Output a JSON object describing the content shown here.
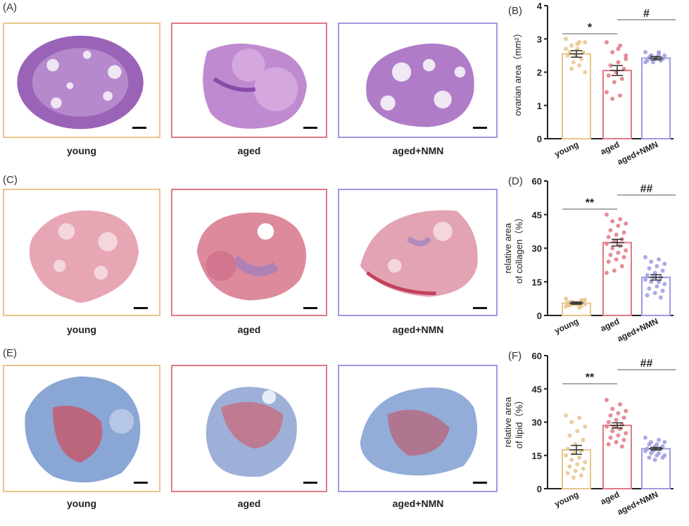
{
  "panels": {
    "A": "(A)",
    "B": "(B)",
    "C": "(C)",
    "D": "(D)",
    "E": "(E)",
    "F": "(F)"
  },
  "groups": [
    "young",
    "aged",
    "aged+NMN"
  ],
  "colors": {
    "young": "#e8c48c",
    "aged": "#e07a82",
    "nmn": "#9e9be0"
  },
  "chart_data": [
    {
      "id": "B",
      "type": "bar",
      "categories": [
        "young",
        "aged",
        "aged+NMN"
      ],
      "values": [
        2.55,
        2.05,
        2.42
      ],
      "sem": [
        0.1,
        0.15,
        0.05
      ],
      "points": [
        [
          3.0,
          2.9,
          2.8,
          2.9,
          2.7,
          2.6,
          2.6,
          2.5,
          2.5,
          2.4,
          2.3,
          2.7,
          2.2,
          2.1,
          2.0,
          2.85
        ],
        [
          2.9,
          2.8,
          2.6,
          2.5,
          2.3,
          2.2,
          2.1,
          2.0,
          1.9,
          1.8,
          1.7,
          1.4,
          1.3,
          1.2,
          2.4,
          2.7
        ],
        [
          2.6,
          2.55,
          2.5,
          2.5,
          2.45,
          2.45,
          2.4,
          2.4,
          2.35,
          2.35,
          2.3,
          2.3,
          2.6,
          2.5
        ]
      ],
      "ylabel": "ovarian area（mm²）",
      "ylim": [
        0,
        4
      ],
      "yticks": [
        "0",
        "1",
        "2",
        "3",
        "4"
      ],
      "sig": [
        {
          "text": "*",
          "from": 0,
          "to": 1
        },
        {
          "text": "#",
          "from": 1,
          "to": 2
        }
      ]
    },
    {
      "id": "D",
      "type": "bar",
      "categories": [
        "young",
        "aged",
        "aged+NMN"
      ],
      "values": [
        5.5,
        32.5,
        17.0
      ],
      "sem": [
        0.5,
        1.5,
        1.2
      ],
      "points": [
        [
          4,
          5,
          6,
          7,
          5,
          4.5,
          6.5,
          5.5,
          6,
          4,
          5,
          7.5,
          3.5,
          6,
          5,
          5.5,
          4.8,
          6.2,
          5.2,
          4.6,
          6.8,
          5.8
        ],
        [
          45,
          43,
          42,
          41,
          40,
          38,
          37,
          36,
          35,
          34,
          33,
          32,
          31,
          30,
          29,
          28,
          27,
          26,
          25,
          24,
          22,
          20,
          19
        ],
        [
          26,
          25,
          24,
          23,
          22,
          21,
          20,
          19,
          18,
          17,
          17,
          16,
          15,
          15,
          14,
          13,
          12,
          11,
          10,
          9,
          8
        ]
      ],
      "ylabel_lines": [
        "relative area",
        "of collagen（%）"
      ],
      "ylim": [
        0,
        60
      ],
      "yticks": [
        "0",
        "15",
        "30",
        "45",
        "60"
      ],
      "sig": [
        {
          "text": "**",
          "from": 0,
          "to": 1
        },
        {
          "text": "##",
          "from": 1,
          "to": 2
        }
      ]
    },
    {
      "id": "F",
      "type": "bar",
      "categories": [
        "young",
        "aged",
        "aged+NMN"
      ],
      "values": [
        17.5,
        28.5,
        18.0
      ],
      "sem": [
        2.0,
        1.2,
        0.6
      ],
      "points": [
        [
          33,
          32,
          30,
          28,
          26,
          24,
          22,
          20,
          18,
          17,
          16,
          15,
          14,
          13,
          12,
          11,
          10,
          9,
          8,
          7,
          6,
          5
        ],
        [
          40,
          38,
          36,
          35,
          34,
          33,
          32,
          31,
          30,
          29,
          28,
          28,
          27,
          26,
          25,
          24,
          23,
          22,
          21,
          20,
          19
        ],
        [
          23,
          22,
          21,
          21,
          20,
          20,
          19,
          19,
          18,
          18,
          17,
          17,
          16,
          16,
          15,
          15,
          14,
          14,
          13
        ]
      ],
      "ylabel_lines": [
        "relative area",
        "of lipid（%）"
      ],
      "ylim": [
        0,
        60
      ],
      "yticks": [
        "0",
        "15",
        "30",
        "45",
        "60"
      ],
      "sig": [
        {
          "text": "**",
          "from": 0,
          "to": 1
        },
        {
          "text": "##",
          "from": 1,
          "to": 2
        }
      ]
    }
  ]
}
